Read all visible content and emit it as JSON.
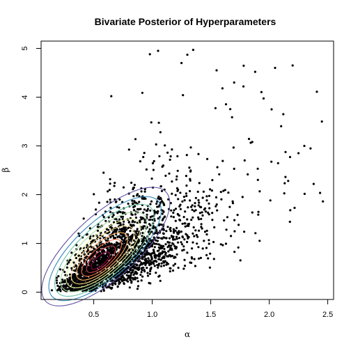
{
  "chart_data": {
    "type": "scatter",
    "title": "Bivariate Posterior of Hyperparameters",
    "xlabel": "α",
    "ylabel": "β",
    "xlim": [
      0.05,
      2.55
    ],
    "ylim": [
      -0.15,
      5.15
    ],
    "x_ticks": [
      0.5,
      1.0,
      1.5,
      2.0,
      2.5
    ],
    "x_tick_labels": [
      "0.5",
      "1.0",
      "1.5",
      "2.0",
      "2.5"
    ],
    "y_ticks": [
      0,
      1,
      2,
      3,
      4,
      5
    ],
    "y_tick_labels": [
      "0",
      "1",
      "2",
      "3",
      "4",
      "5"
    ],
    "grid": false,
    "point_color": "#000000",
    "posterior_mode": {
      "x": 0.55,
      "y": 0.6
    },
    "density_spread": {
      "sx": 0.27,
      "sy": 0.62,
      "correlation": 0.72
    },
    "contour_colors": [
      "#5e4fa2",
      "#3288bd",
      "#66c2a5",
      "#abdda4",
      "#e6f598",
      "#fee08b",
      "#fdae61",
      "#f46d43",
      "#d53e4f",
      "#9e0142"
    ],
    "contour_radii": [
      2.45,
      2.15,
      1.9,
      1.65,
      1.42,
      1.2,
      0.98,
      0.76,
      0.55,
      0.36
    ],
    "outlier_points": [
      {
        "x": 1.35,
        "y": 4.97
      },
      {
        "x": 1.3,
        "y": 4.87
      },
      {
        "x": 1.05,
        "y": 4.95
      },
      {
        "x": 0.98,
        "y": 4.88
      },
      {
        "x": 1.55,
        "y": 4.55
      },
      {
        "x": 2.2,
        "y": 4.65
      },
      {
        "x": 2.05,
        "y": 4.6
      },
      {
        "x": 1.88,
        "y": 4.52
      },
      {
        "x": 1.7,
        "y": 4.3
      },
      {
        "x": 2.45,
        "y": 3.5
      },
      {
        "x": 2.38,
        "y": 2.22
      },
      {
        "x": 2.3,
        "y": 3.0
      },
      {
        "x": 2.18,
        "y": 1.68
      },
      {
        "x": 2.12,
        "y": 3.65
      },
      {
        "x": 2.02,
        "y": 3.75
      },
      {
        "x": 1.78,
        "y": 4.22
      },
      {
        "x": 1.6,
        "y": 4.18
      },
      {
        "x": 0.65,
        "y": 4.02
      },
      {
        "x": 1.25,
        "y": 4.7
      },
      {
        "x": 2.25,
        "y": 2.85
      }
    ]
  }
}
